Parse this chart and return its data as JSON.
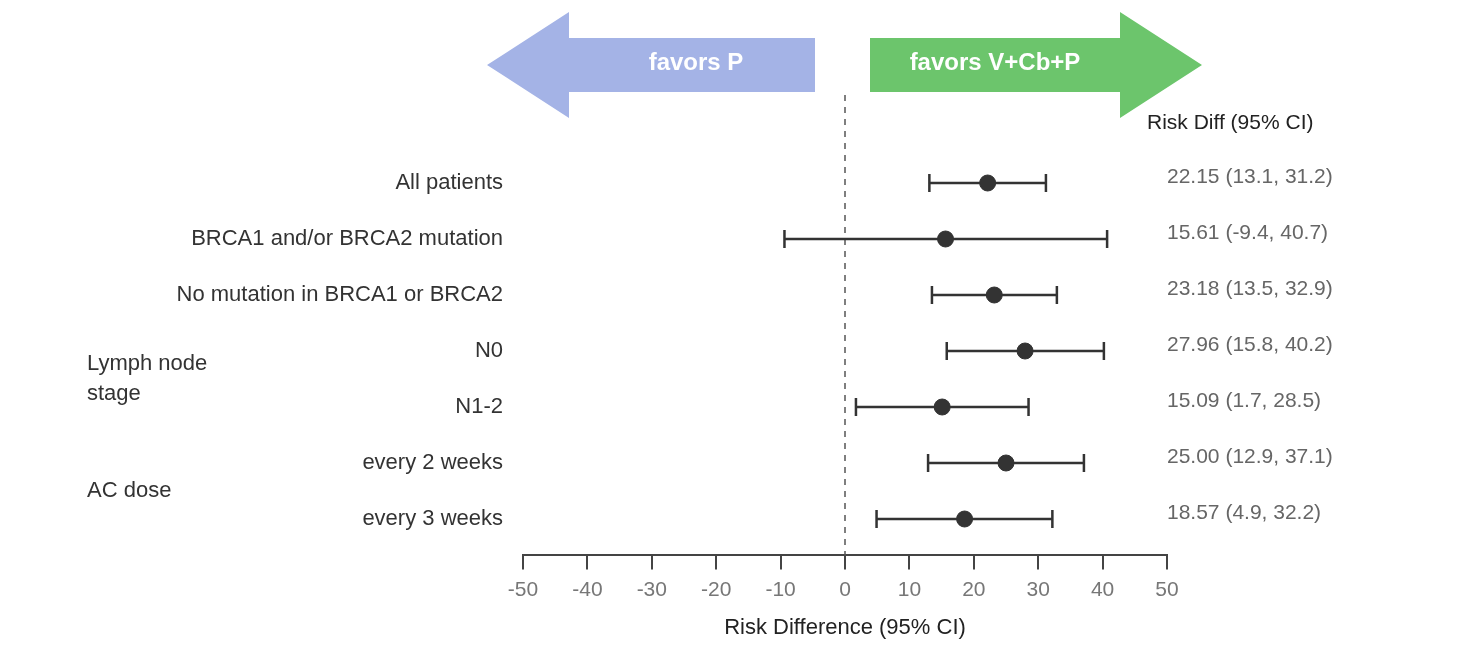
{
  "chart_data": {
    "type": "scatter",
    "orientation": "horizontal",
    "xlabel": "Risk Difference (95% CI)",
    "categories": [
      "All patients",
      "BRCA1 and/or BRCA2 mutation",
      "No mutation in BRCA1 or BRCA2",
      "N0",
      "N1-2",
      "every 2 weeks",
      "every 3 weeks"
    ],
    "values": [
      22.15,
      15.61,
      23.18,
      27.96,
      15.09,
      25.0,
      18.57
    ],
    "errors": [
      [
        13.1,
        31.2
      ],
      [
        -9.4,
        40.7
      ],
      [
        13.5,
        32.9
      ],
      [
        15.8,
        40.2
      ],
      [
        1.7,
        28.5
      ],
      [
        12.9,
        37.1
      ],
      [
        4.9,
        32.2
      ]
    ],
    "value_labels": [
      "22.15 (13.1, 31.2)",
      "15.61 (-9.4, 40.7)",
      "23.18 (13.5, 32.9)",
      "27.96 (15.8, 40.2)",
      "15.09 (1.7, 28.5)",
      "25.00 (12.9, 37.1)",
      "18.57 (4.9, 32.2)"
    ],
    "color": "#333333",
    "marker": "circle",
    "xlim": [
      -50,
      50
    ],
    "xticks": [
      -50,
      -40,
      -30,
      -20,
      -10,
      0,
      10,
      20,
      30,
      40,
      50
    ],
    "ref_lines": [
      {
        "axis": "x",
        "value": 0,
        "line_style": "dashed",
        "color": "#555555"
      }
    ],
    "annotations": [
      "Risk Diff (95% CI)",
      "favors P",
      "favors V+Cb+P",
      "Lymph node stage",
      "AC dose"
    ],
    "grid": false,
    "legend": false
  }
}
